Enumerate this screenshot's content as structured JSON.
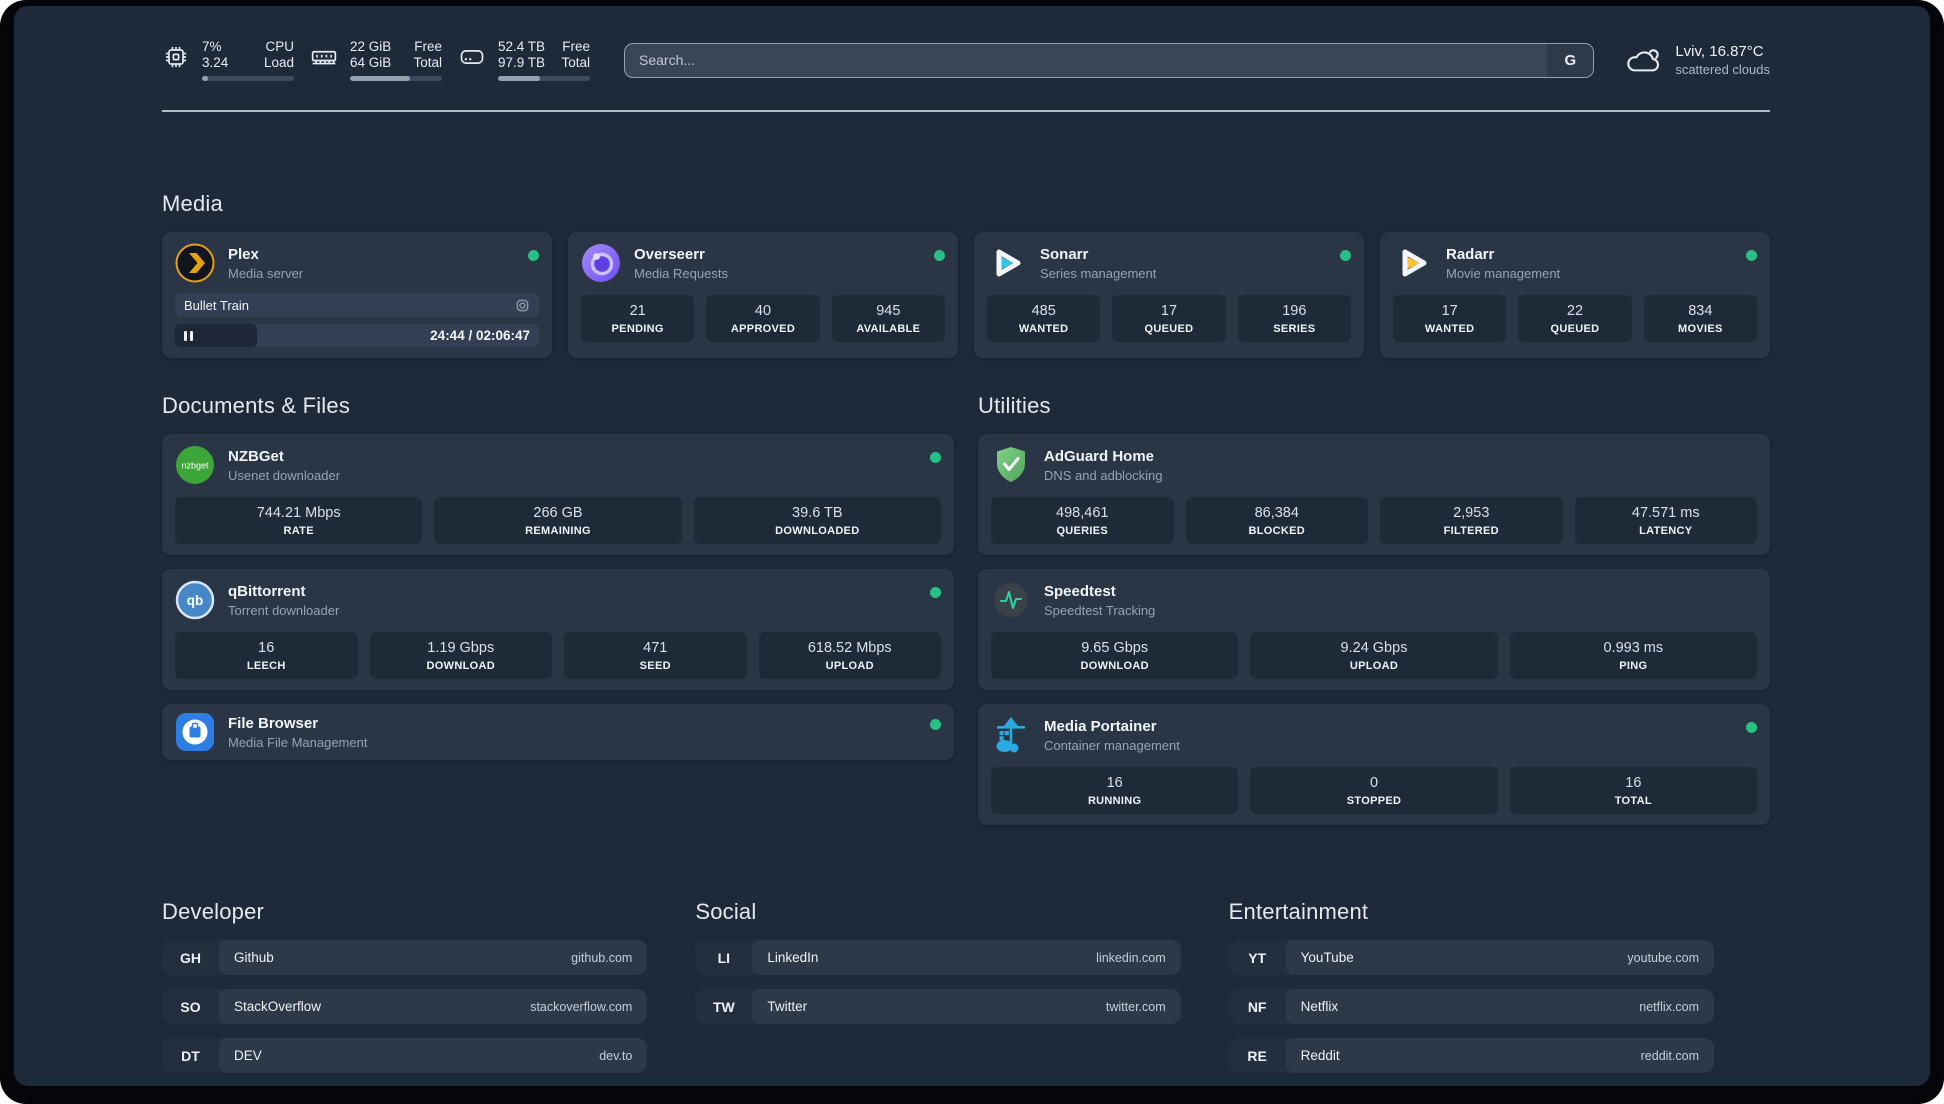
{
  "header": {
    "cpu": {
      "icon": "cpu-icon",
      "value1": "7%",
      "value2": "3.24",
      "label1": "CPU",
      "label2": "Load",
      "progress_pct": 7
    },
    "memory": {
      "icon": "memory-icon",
      "value1": "22 GiB",
      "value2": "64 GiB",
      "label1": "Free",
      "label2": "Total",
      "progress_pct": 65
    },
    "disk": {
      "icon": "disk-icon",
      "value1": "52.4 TB",
      "value2": "97.9 TB",
      "label1": "Free",
      "label2": "Total",
      "progress_pct": 46
    },
    "search": {
      "placeholder": "Search...",
      "button_label": "G"
    },
    "weather": {
      "icon": "cloud-icon",
      "title": "Lviv, 16.87°C",
      "subtitle": "scattered clouds"
    }
  },
  "sections": {
    "media": {
      "heading": "Media"
    },
    "documents": {
      "heading": "Documents & Files"
    },
    "utilities": {
      "heading": "Utilities"
    },
    "developer": {
      "heading": "Developer"
    },
    "social": {
      "heading": "Social"
    },
    "entertainment": {
      "heading": "Entertainment"
    }
  },
  "services": {
    "plex": {
      "name": "Plex",
      "description": "Media server",
      "icon": "plex-icon",
      "status": "online",
      "player": {
        "title": "Bullet Train",
        "time_display": "24:44 / 02:06:47",
        "progress_pct": 20
      }
    },
    "overseerr": {
      "name": "Overseerr",
      "description": "Media Requests",
      "icon": "overseerr-icon",
      "status": "online",
      "stats": [
        {
          "value": "21",
          "label": "PENDING"
        },
        {
          "value": "40",
          "label": "APPROVED"
        },
        {
          "value": "945",
          "label": "AVAILABLE"
        }
      ]
    },
    "sonarr": {
      "name": "Sonarr",
      "description": "Series management",
      "icon": "sonarr-icon",
      "status": "online",
      "stats": [
        {
          "value": "485",
          "label": "WANTED"
        },
        {
          "value": "17",
          "label": "QUEUED"
        },
        {
          "value": "196",
          "label": "SERIES"
        }
      ]
    },
    "radarr": {
      "name": "Radarr",
      "description": "Movie management",
      "icon": "radarr-icon",
      "status": "online",
      "stats": [
        {
          "value": "17",
          "label": "WANTED"
        },
        {
          "value": "22",
          "label": "QUEUED"
        },
        {
          "value": "834",
          "label": "MOVIES"
        }
      ]
    },
    "nzbget": {
      "name": "NZBGet",
      "description": "Usenet downloader",
      "icon": "nzbget-icon",
      "icon_text": "nzbget",
      "status": "online",
      "stats": [
        {
          "value": "744.21 Mbps",
          "label": "RATE"
        },
        {
          "value": "266 GB",
          "label": "REMAINING"
        },
        {
          "value": "39.6 TB",
          "label": "DOWNLOADED"
        }
      ]
    },
    "qbittorrent": {
      "name": "qBittorrent",
      "description": "Torrent downloader",
      "icon": "qbittorrent-icon",
      "icon_text": "qb",
      "status": "online",
      "stats": [
        {
          "value": "16",
          "label": "LEECH"
        },
        {
          "value": "1.19 Gbps",
          "label": "DOWNLOAD"
        },
        {
          "value": "471",
          "label": "SEED"
        },
        {
          "value": "618.52 Mbps",
          "label": "UPLOAD"
        }
      ]
    },
    "filebrowser": {
      "name": "File Browser",
      "description": "Media File Management",
      "icon": "filebrowser-icon",
      "status": "online"
    },
    "adguard": {
      "name": "AdGuard Home",
      "description": "DNS and adblocking",
      "icon": "adguard-icon",
      "stats": [
        {
          "value": "498,461",
          "label": "QUERIES"
        },
        {
          "value": "86,384",
          "label": "BLOCKED"
        },
        {
          "value": "2,953",
          "label": "FILTERED"
        },
        {
          "value": "47.571 ms",
          "label": "LATENCY"
        }
      ]
    },
    "speedtest": {
      "name": "Speedtest",
      "description": "Speedtest Tracking",
      "icon": "speedtest-icon",
      "stats": [
        {
          "value": "9.65 Gbps",
          "label": "DOWNLOAD"
        },
        {
          "value": "9.24 Gbps",
          "label": "UPLOAD"
        },
        {
          "value": "0.993 ms",
          "label": "PING"
        }
      ]
    },
    "portainer": {
      "name": "Media Portainer",
      "description": "Container management",
      "icon": "portainer-icon",
      "status": "online",
      "stats": [
        {
          "value": "16",
          "label": "RUNNING"
        },
        {
          "value": "0",
          "label": "STOPPED"
        },
        {
          "value": "16",
          "label": "TOTAL"
        }
      ]
    }
  },
  "bookmarks": {
    "developer": [
      {
        "abbr": "GH",
        "name": "Github",
        "url": "github.com"
      },
      {
        "abbr": "SO",
        "name": "StackOverflow",
        "url": "stackoverflow.com"
      },
      {
        "abbr": "DT",
        "name": "DEV",
        "url": "dev.to"
      }
    ],
    "social": [
      {
        "abbr": "LI",
        "name": "LinkedIn",
        "url": "linkedin.com"
      },
      {
        "abbr": "TW",
        "name": "Twitter",
        "url": "twitter.com"
      }
    ],
    "entertainment": [
      {
        "abbr": "YT",
        "name": "YouTube",
        "url": "youtube.com"
      },
      {
        "abbr": "NF",
        "name": "Netflix",
        "url": "netflix.com"
      },
      {
        "abbr": "RE",
        "name": "Reddit",
        "url": "reddit.com"
      }
    ]
  },
  "colors": {
    "page_bg": "#1e2939",
    "card_bg": "#2a3546",
    "stat_bg": "#1f2a39",
    "status_online": "#27c186",
    "plex_gold": "#e5a00d",
    "sonarr_cyan": "#35c5f1",
    "radarr_amber": "#ffc230",
    "nzbget_green": "#3da639",
    "qbittorrent_blue": "#4688c7",
    "adguard_green": "#68bc71",
    "speedtest_green": "#2ed3a3",
    "portainer_blue": "#29a9e0",
    "filebrowser_blue": "#2f7ee3",
    "overseerr_purple": "#7c5cfa"
  }
}
